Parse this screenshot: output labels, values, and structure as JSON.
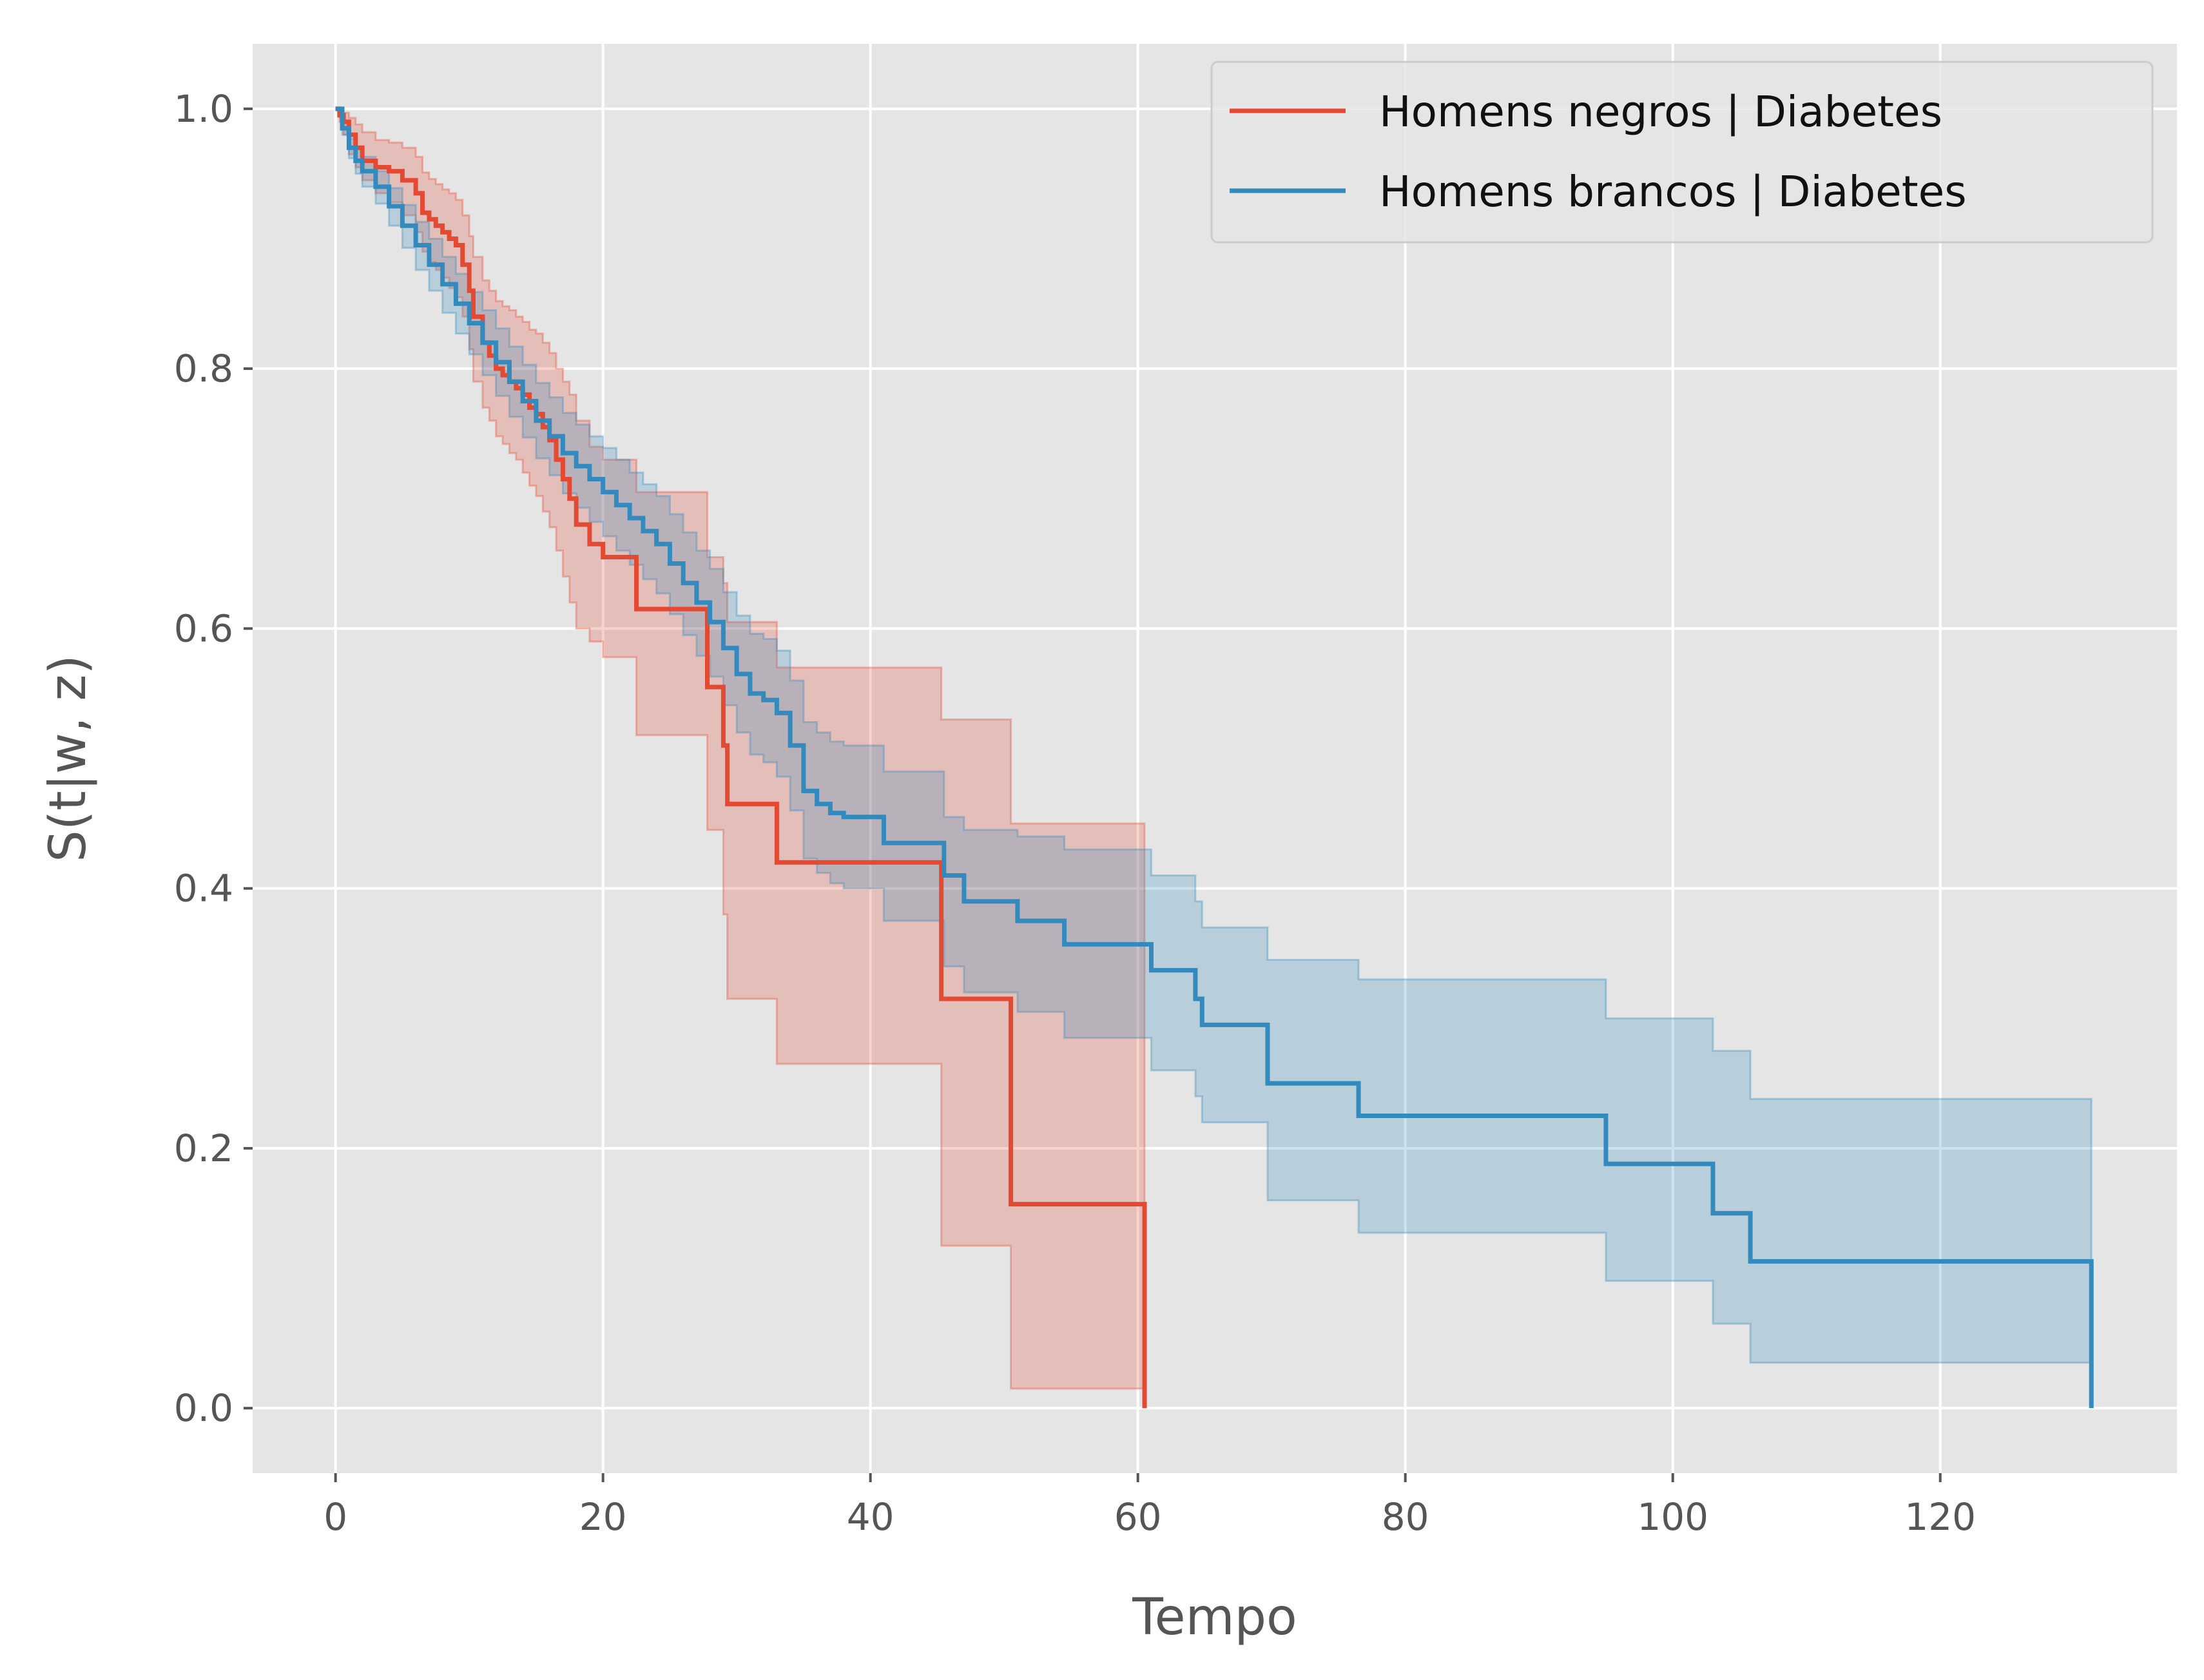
{
  "chart_data": {
    "type": "line",
    "xlabel": "Tempo",
    "ylabel": "S(t|w, z)",
    "xlim": [
      -6.2,
      137.7
    ],
    "ylim": [
      -0.05,
      1.05
    ],
    "xticks": [
      0,
      20,
      40,
      60,
      80,
      100,
      120
    ],
    "xtick_labels": [
      "0",
      "20",
      "40",
      "60",
      "80",
      "100",
      "120"
    ],
    "yticks": [
      0.0,
      0.2,
      0.4,
      0.6,
      0.8,
      1.0
    ],
    "ytick_labels": [
      "0.0",
      "0.2",
      "0.4",
      "0.6",
      "0.8",
      "1.0"
    ],
    "grid": true,
    "legend_position": "top-right",
    "series": [
      {
        "name": "Homens negros | Diabetes",
        "color": "#E24A33",
        "step": "post",
        "x": [
          0,
          0.3,
          0.6,
          1,
          1.5,
          2,
          3,
          4,
          5,
          6,
          6.5,
          7,
          7.5,
          8,
          8.5,
          9,
          9.5,
          10,
          10.3,
          11,
          11.5,
          12,
          12.5,
          13,
          13.5,
          14,
          14.5,
          15,
          15.5,
          16,
          16.5,
          17,
          17.5,
          18,
          19,
          20,
          22.5,
          27.8,
          29,
          29.3,
          33,
          45.3,
          50.5,
          60.5
        ],
        "y": [
          1.0,
          0.995,
          0.99,
          0.98,
          0.97,
          0.96,
          0.955,
          0.952,
          0.945,
          0.935,
          0.92,
          0.915,
          0.91,
          0.905,
          0.9,
          0.895,
          0.88,
          0.86,
          0.84,
          0.82,
          0.81,
          0.8,
          0.795,
          0.79,
          0.785,
          0.78,
          0.77,
          0.765,
          0.755,
          0.745,
          0.73,
          0.715,
          0.7,
          0.68,
          0.665,
          0.655,
          0.615,
          0.555,
          0.51,
          0.465,
          0.42,
          0.315,
          0.157,
          0.0
        ],
        "ci_lower": [
          1.0,
          0.99,
          0.98,
          0.965,
          0.955,
          0.945,
          0.935,
          0.928,
          0.918,
          0.905,
          0.89,
          0.882,
          0.876,
          0.87,
          0.862,
          0.855,
          0.84,
          0.815,
          0.79,
          0.77,
          0.76,
          0.748,
          0.742,
          0.735,
          0.73,
          0.72,
          0.71,
          0.702,
          0.69,
          0.678,
          0.66,
          0.64,
          0.62,
          0.6,
          0.59,
          0.578,
          0.518,
          0.445,
          0.38,
          0.315,
          0.265,
          0.125,
          0.015,
          0.0
        ],
        "ci_upper": [
          1.0,
          1.0,
          0.997,
          0.993,
          0.988,
          0.982,
          0.976,
          0.974,
          0.97,
          0.963,
          0.951,
          0.946,
          0.942,
          0.938,
          0.935,
          0.93,
          0.918,
          0.902,
          0.886,
          0.868,
          0.86,
          0.852,
          0.848,
          0.845,
          0.84,
          0.836,
          0.83,
          0.827,
          0.82,
          0.812,
          0.8,
          0.79,
          0.78,
          0.76,
          0.74,
          0.73,
          0.705,
          0.655,
          0.635,
          0.605,
          0.57,
          0.53,
          0.45,
          0.45
        ]
      },
      {
        "name": "Homens brancos | Diabetes",
        "color": "#348ABD",
        "step": "post",
        "x": [
          0,
          0.5,
          1,
          1.5,
          2,
          3,
          4,
          5,
          6,
          7,
          8,
          9,
          10,
          11,
          12,
          13,
          14,
          15,
          16,
          17,
          18,
          19,
          20,
          21,
          22,
          23,
          24,
          25,
          26,
          27,
          28,
          29,
          30,
          31,
          32,
          33,
          34,
          35,
          36,
          37,
          38,
          41,
          45.5,
          47,
          51,
          54.5,
          61,
          64.3,
          64.8,
          69.7,
          76.5,
          95,
          103,
          105.8,
          131.3
        ],
        "y": [
          1.0,
          0.985,
          0.97,
          0.96,
          0.952,
          0.94,
          0.925,
          0.91,
          0.895,
          0.88,
          0.865,
          0.85,
          0.835,
          0.82,
          0.805,
          0.79,
          0.775,
          0.76,
          0.748,
          0.735,
          0.725,
          0.715,
          0.705,
          0.695,
          0.685,
          0.675,
          0.665,
          0.65,
          0.635,
          0.62,
          0.605,
          0.585,
          0.565,
          0.55,
          0.545,
          0.535,
          0.51,
          0.475,
          0.465,
          0.458,
          0.455,
          0.435,
          0.41,
          0.39,
          0.375,
          0.357,
          0.337,
          0.315,
          0.295,
          0.25,
          0.225,
          0.188,
          0.15,
          0.113,
          0.0
        ],
        "ci_lower": [
          1.0,
          0.98,
          0.962,
          0.95,
          0.94,
          0.927,
          0.91,
          0.893,
          0.876,
          0.86,
          0.843,
          0.827,
          0.811,
          0.795,
          0.779,
          0.763,
          0.747,
          0.731,
          0.718,
          0.704,
          0.693,
          0.682,
          0.671,
          0.66,
          0.649,
          0.638,
          0.627,
          0.611,
          0.595,
          0.579,
          0.563,
          0.541,
          0.52,
          0.503,
          0.497,
          0.486,
          0.46,
          0.423,
          0.412,
          0.404,
          0.4,
          0.375,
          0.34,
          0.32,
          0.305,
          0.285,
          0.26,
          0.24,
          0.22,
          0.16,
          0.135,
          0.098,
          0.065,
          0.035,
          0.035
        ],
        "ci_upper": [
          1.0,
          0.99,
          0.977,
          0.969,
          0.963,
          0.952,
          0.939,
          0.926,
          0.913,
          0.9,
          0.886,
          0.873,
          0.859,
          0.845,
          0.831,
          0.817,
          0.803,
          0.789,
          0.778,
          0.766,
          0.757,
          0.748,
          0.739,
          0.73,
          0.72,
          0.711,
          0.702,
          0.688,
          0.674,
          0.66,
          0.646,
          0.628,
          0.61,
          0.596,
          0.592,
          0.583,
          0.56,
          0.528,
          0.52,
          0.513,
          0.51,
          0.49,
          0.455,
          0.445,
          0.44,
          0.43,
          0.41,
          0.39,
          0.37,
          0.345,
          0.33,
          0.3,
          0.275,
          0.238,
          0.238
        ]
      }
    ]
  }
}
